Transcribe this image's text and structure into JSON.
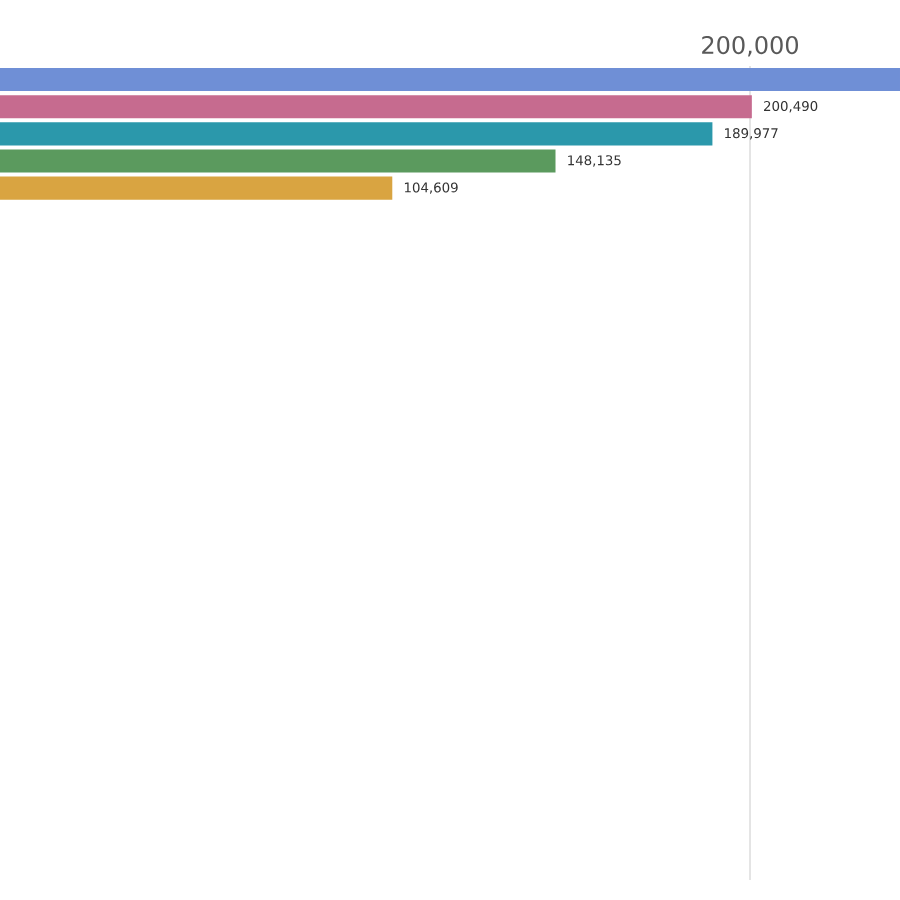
{
  "chart_data": {
    "type": "bar",
    "orientation": "horizontal",
    "categories": [
      null,
      null,
      null,
      null,
      null
    ],
    "values": [
      240000,
      200490,
      189977,
      148135,
      104609
    ],
    "colors": [
      "#6f8fd6",
      "#c66b8f",
      "#2b98ab",
      "#5b9a5e",
      "#d9a441"
    ],
    "value_labels": [
      null,
      "200,490",
      "189,977",
      "148,135",
      "104,609"
    ],
    "xlim": [
      0,
      240000
    ],
    "xticks": [
      {
        "value": 200000,
        "label": "200,000"
      }
    ],
    "grid": "x"
  }
}
